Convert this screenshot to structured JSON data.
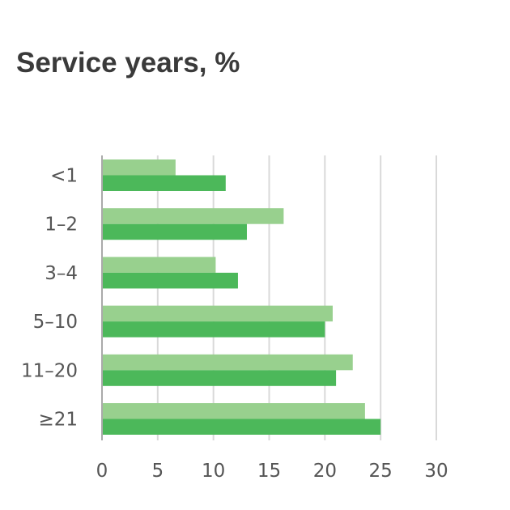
{
  "chart_data": {
    "type": "bar",
    "orientation": "horizontal",
    "title": "Service years, %",
    "xlabel": "",
    "ylabel": "",
    "categories": [
      "<1",
      "1–2",
      "3–4",
      "5–10",
      "11–20",
      "≥21"
    ],
    "series": [
      {
        "values": [
          6.6,
          16.3,
          10.2,
          20.7,
          22.5,
          23.6
        ],
        "color": "#98d08e"
      },
      {
        "values": [
          11.1,
          13.0,
          12.2,
          20.0,
          21.0,
          25.0
        ],
        "color": "#4cb85a"
      }
    ],
    "xlim": [
      0,
      30
    ],
    "xticks": [
      "0",
      "5",
      "10",
      "15",
      "20",
      "25",
      "30"
    ],
    "grid": "vertical"
  }
}
